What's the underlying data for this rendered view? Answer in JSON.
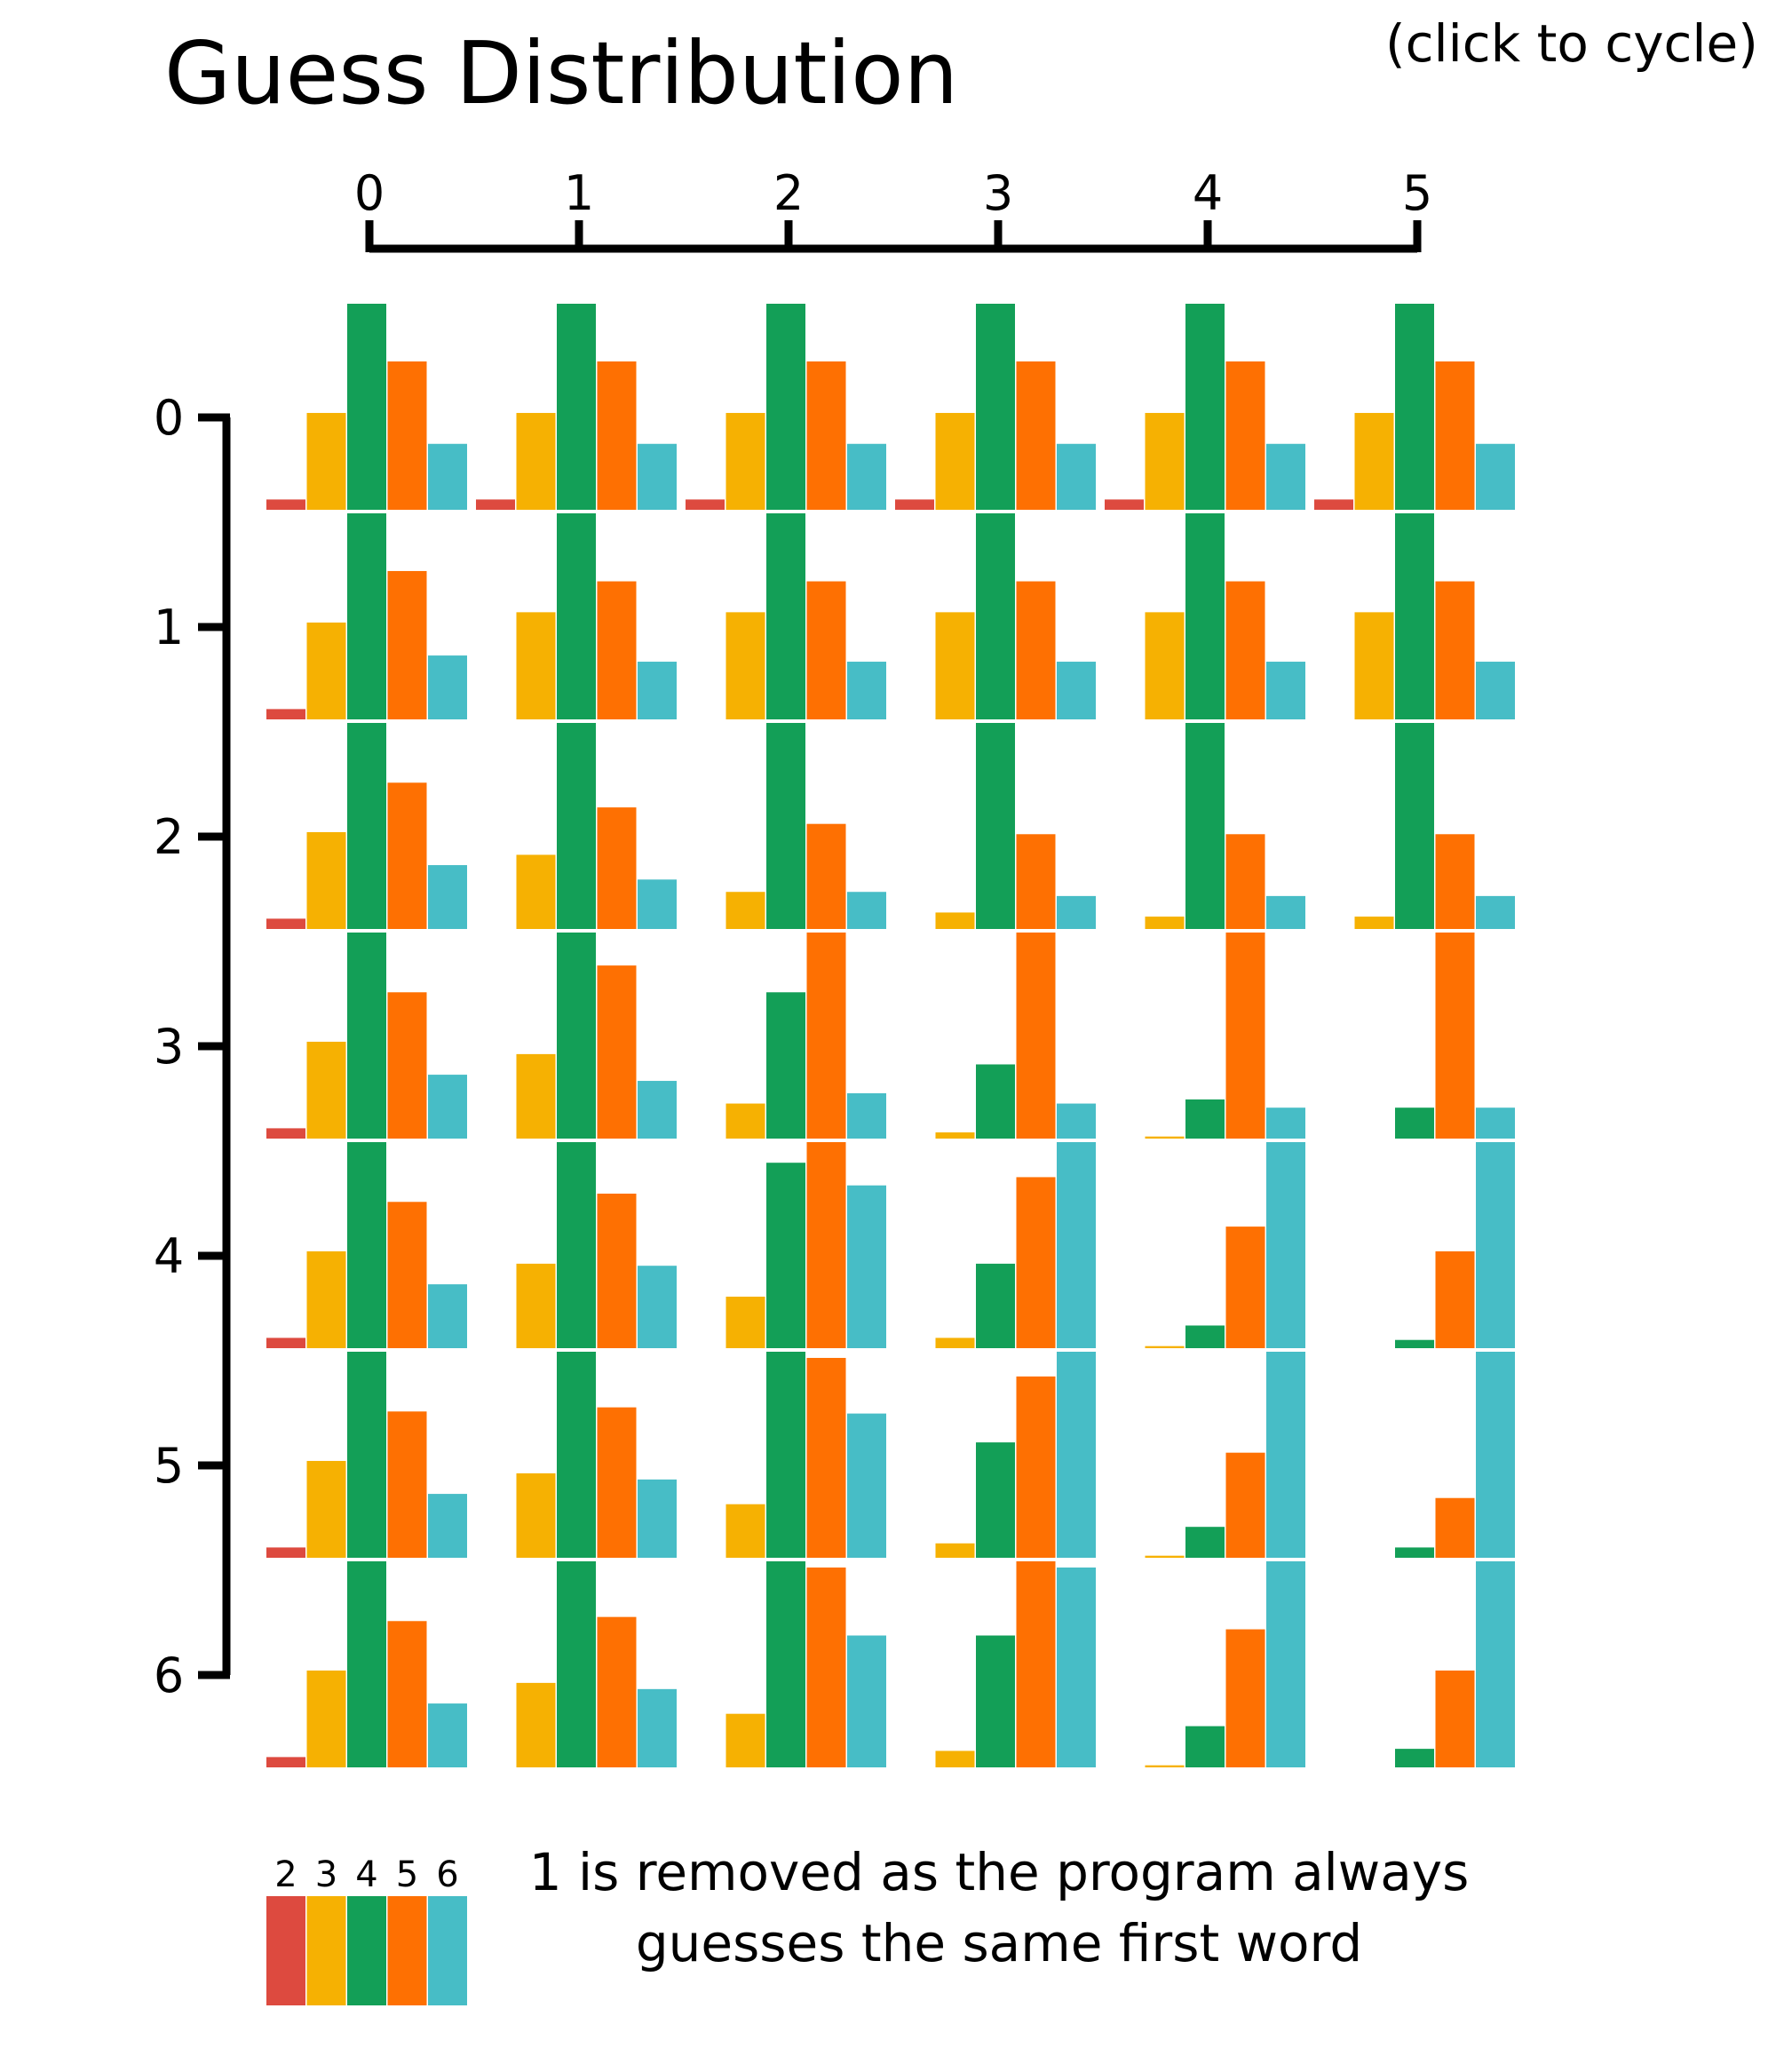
{
  "header": {
    "cycle_hint": "(click to cycle)"
  },
  "legend": {
    "note_line1": "1 is removed as the program always",
    "note_line2": "guesses the same first word"
  },
  "colors": {
    "2": "#dd4a3f",
    "3": "#f6b102",
    "4": "#139f57",
    "5": "#fe7002",
    "6": "#47bdc6",
    "axis": "#000000"
  },
  "chart_data": {
    "type": "bar",
    "title": "Guess Distribution",
    "layout": "small-multiples grid",
    "column_axis": {
      "ticks": [
        "0",
        "1",
        "2",
        "3",
        "4",
        "5"
      ]
    },
    "row_axis": {
      "ticks": [
        "0",
        "1",
        "2",
        "3",
        "4",
        "5",
        "6"
      ]
    },
    "categories": [
      "2",
      "3",
      "4",
      "5",
      "6"
    ],
    "legend_position": "bottom-left",
    "value_scale": "each panel scaled to its own maximum (tallest bar = 1.0)",
    "panels": [
      [
        {
          "row": "0",
          "col": "0",
          "values": [
            0.05,
            0.47,
            1.0,
            0.72,
            0.32
          ]
        },
        {
          "row": "0",
          "col": "1",
          "values": [
            0.05,
            0.47,
            1.0,
            0.72,
            0.32
          ]
        },
        {
          "row": "0",
          "col": "2",
          "values": [
            0.05,
            0.47,
            1.0,
            0.72,
            0.32
          ]
        },
        {
          "row": "0",
          "col": "3",
          "values": [
            0.05,
            0.47,
            1.0,
            0.72,
            0.32
          ]
        },
        {
          "row": "0",
          "col": "4",
          "values": [
            0.05,
            0.47,
            1.0,
            0.72,
            0.32
          ]
        },
        {
          "row": "0",
          "col": "5",
          "values": [
            0.05,
            0.47,
            1.0,
            0.72,
            0.32
          ]
        }
      ],
      [
        {
          "row": "1",
          "col": "0",
          "values": [
            0.05,
            0.47,
            1.0,
            0.72,
            0.31
          ]
        },
        {
          "row": "1",
          "col": "1",
          "values": [
            0.0,
            0.52,
            1.0,
            0.67,
            0.28
          ]
        },
        {
          "row": "1",
          "col": "2",
          "values": [
            0.0,
            0.52,
            1.0,
            0.67,
            0.28
          ]
        },
        {
          "row": "1",
          "col": "3",
          "values": [
            0.0,
            0.52,
            1.0,
            0.67,
            0.28
          ]
        },
        {
          "row": "1",
          "col": "4",
          "values": [
            0.0,
            0.52,
            1.0,
            0.67,
            0.28
          ]
        },
        {
          "row": "1",
          "col": "5",
          "values": [
            0.0,
            0.52,
            1.0,
            0.67,
            0.28
          ]
        }
      ],
      [
        {
          "row": "2",
          "col": "0",
          "values": [
            0.05,
            0.47,
            1.0,
            0.71,
            0.31
          ]
        },
        {
          "row": "2",
          "col": "1",
          "values": [
            0.0,
            0.36,
            1.0,
            0.59,
            0.24
          ]
        },
        {
          "row": "2",
          "col": "2",
          "values": [
            0.0,
            0.18,
            1.0,
            0.51,
            0.18
          ]
        },
        {
          "row": "2",
          "col": "3",
          "values": [
            0.0,
            0.08,
            1.0,
            0.46,
            0.16
          ]
        },
        {
          "row": "2",
          "col": "4",
          "values": [
            0.0,
            0.06,
            1.0,
            0.46,
            0.16
          ]
        },
        {
          "row": "2",
          "col": "5",
          "values": [
            0.0,
            0.06,
            1.0,
            0.46,
            0.16
          ]
        }
      ],
      [
        {
          "row": "3",
          "col": "0",
          "values": [
            0.05,
            0.47,
            1.0,
            0.71,
            0.31
          ]
        },
        {
          "row": "3",
          "col": "1",
          "values": [
            0.0,
            0.41,
            1.0,
            0.84,
            0.28
          ]
        },
        {
          "row": "3",
          "col": "2",
          "values": [
            0.0,
            0.17,
            0.71,
            1.0,
            0.22
          ]
        },
        {
          "row": "3",
          "col": "3",
          "values": [
            0.0,
            0.03,
            0.36,
            1.0,
            0.17
          ]
        },
        {
          "row": "3",
          "col": "4",
          "values": [
            0.0,
            0.01,
            0.19,
            1.0,
            0.15
          ]
        },
        {
          "row": "3",
          "col": "5",
          "values": [
            0.0,
            0.0,
            0.15,
            1.0,
            0.15
          ]
        }
      ],
      [
        {
          "row": "4",
          "col": "0",
          "values": [
            0.05,
            0.47,
            1.0,
            0.71,
            0.31
          ]
        },
        {
          "row": "4",
          "col": "1",
          "values": [
            0.0,
            0.41,
            1.0,
            0.75,
            0.4
          ]
        },
        {
          "row": "4",
          "col": "2",
          "values": [
            0.0,
            0.25,
            0.9,
            1.0,
            0.79
          ]
        },
        {
          "row": "4",
          "col": "3",
          "values": [
            0.0,
            0.05,
            0.41,
            0.83,
            1.0
          ]
        },
        {
          "row": "4",
          "col": "4",
          "values": [
            0.0,
            0.01,
            0.11,
            0.59,
            1.0
          ]
        },
        {
          "row": "4",
          "col": "5",
          "values": [
            0.0,
            0.0,
            0.04,
            0.47,
            1.0
          ]
        }
      ],
      [
        {
          "row": "5",
          "col": "0",
          "values": [
            0.05,
            0.47,
            1.0,
            0.71,
            0.31
          ]
        },
        {
          "row": "5",
          "col": "1",
          "values": [
            0.0,
            0.41,
            1.0,
            0.73,
            0.38
          ]
        },
        {
          "row": "5",
          "col": "2",
          "values": [
            0.0,
            0.26,
            1.0,
            0.97,
            0.7
          ]
        },
        {
          "row": "5",
          "col": "3",
          "values": [
            0.0,
            0.07,
            0.56,
            0.88,
            1.0
          ]
        },
        {
          "row": "5",
          "col": "4",
          "values": [
            0.0,
            0.01,
            0.15,
            0.51,
            1.0
          ]
        },
        {
          "row": "5",
          "col": "5",
          "values": [
            0.0,
            0.0,
            0.05,
            0.29,
            1.0
          ]
        }
      ],
      [
        {
          "row": "6",
          "col": "0",
          "values": [
            0.05,
            0.47,
            1.0,
            0.71,
            0.31
          ]
        },
        {
          "row": "6",
          "col": "1",
          "values": [
            0.0,
            0.41,
            1.0,
            0.73,
            0.38
          ]
        },
        {
          "row": "6",
          "col": "2",
          "values": [
            0.0,
            0.26,
            1.0,
            0.97,
            0.64
          ]
        },
        {
          "row": "6",
          "col": "3",
          "values": [
            0.0,
            0.08,
            0.64,
            1.0,
            0.97
          ]
        },
        {
          "row": "6",
          "col": "4",
          "values": [
            0.0,
            0.01,
            0.2,
            0.67,
            1.0
          ]
        },
        {
          "row": "6",
          "col": "5",
          "values": [
            0.0,
            0.0,
            0.09,
            0.47,
            1.0
          ]
        }
      ]
    ]
  }
}
